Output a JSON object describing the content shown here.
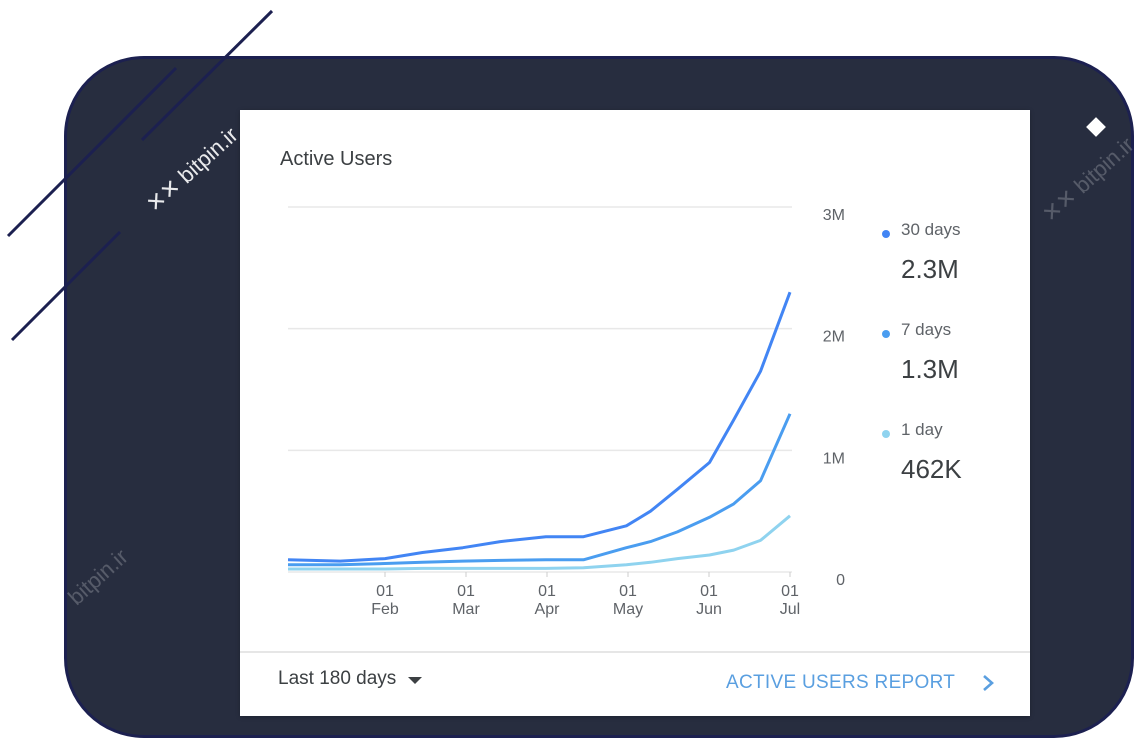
{
  "watermark": {
    "text": "bitpin.ir"
  },
  "card": {
    "title": "Active Users",
    "range_label": "Last 180 days",
    "report_link_label": "ACTIVE USERS REPORT"
  },
  "legend": [
    {
      "label": "30 days",
      "value": "2.3M",
      "color": "#4285f4"
    },
    {
      "label": "7 days",
      "value": "1.3M",
      "color": "#4a9df0"
    },
    {
      "label": "1 day",
      "value": "462K",
      "color": "#8fd3ef"
    }
  ],
  "chart_data": {
    "type": "line",
    "title": "Active Users",
    "x_ticks": [
      "01\nFeb",
      "01\nMar",
      "01\nApr",
      "01\nMay",
      "01\nJun",
      "01\nJul"
    ],
    "y_ticks": [
      "0",
      "1M",
      "2M",
      "3M"
    ],
    "ylim": [
      0,
      3000000
    ],
    "grid": true,
    "legend_position": "right",
    "x": [
      "2020-01-06",
      "2020-01-20",
      "2020-02-01",
      "2020-02-15",
      "2020-03-01",
      "2020-03-15",
      "2020-04-01",
      "2020-04-15",
      "2020-05-01",
      "2020-05-10",
      "2020-05-20",
      "2020-06-01",
      "2020-06-10",
      "2020-06-20",
      "2020-07-01"
    ],
    "series": [
      {
        "name": "30 days",
        "color": "#4285f4",
        "values": [
          100000,
          90000,
          110000,
          160000,
          200000,
          250000,
          290000,
          290000,
          380000,
          500000,
          680000,
          900000,
          1250000,
          1650000,
          2300000
        ]
      },
      {
        "name": "7 days",
        "color": "#4a9df0",
        "values": [
          60000,
          60000,
          70000,
          80000,
          90000,
          95000,
          100000,
          100000,
          200000,
          250000,
          330000,
          450000,
          560000,
          750000,
          1300000
        ]
      },
      {
        "name": "1 day",
        "color": "#8fd3ef",
        "values": [
          25000,
          25000,
          25000,
          30000,
          30000,
          30000,
          30000,
          35000,
          60000,
          80000,
          110000,
          140000,
          180000,
          260000,
          462000
        ]
      }
    ]
  }
}
